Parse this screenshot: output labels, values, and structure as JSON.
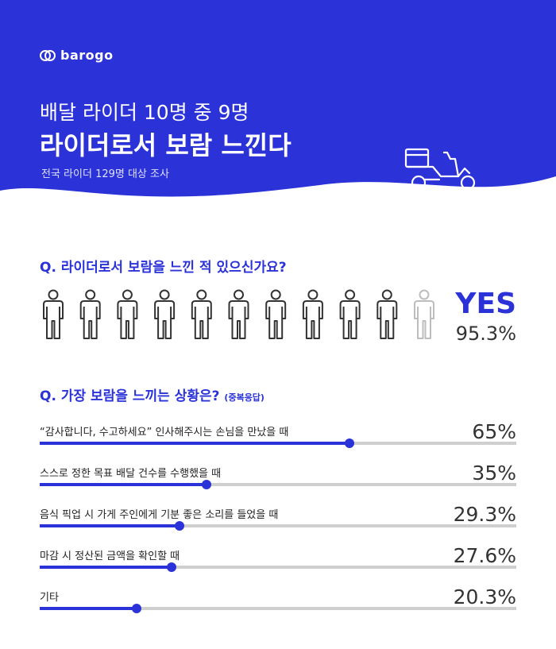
{
  "brand": {
    "name": "barogo"
  },
  "header": {
    "line1": "배달 라이더 10명 중 9명",
    "line2": "라이더로서 보람 느낀다",
    "sub": "전국 라이더 129명 대상 조사"
  },
  "colors": {
    "accent": "#2b32d8",
    "track": "#cfcfcf",
    "figure_dark": "#333333",
    "figure_light": "#bdbdbd"
  },
  "icons": [
    "barogo-logo-icon",
    "delivery-scooter-icon",
    "person-icon"
  ],
  "chart_data": [
    {
      "type": "pictograph",
      "title": "Q. 라이더로서 보람을 느낀 적 있으신가요?",
      "figures_total": 11,
      "figures_highlighted": 10,
      "answer": "YES",
      "value": 95.3,
      "value_label": "95.3%"
    },
    {
      "type": "bar",
      "title": "Q. 가장 보람을 느끼는 상황은?",
      "note": "(중복응답)",
      "xlim": [
        0,
        100
      ],
      "categories": [
        "“감사합니다, 수고하세요” 인사해주시는 손님을 만났을 때",
        "스스로 정한 목표 배달 건수를 수행했을 때",
        "음식 픽업 시 가게 주인에게 기분 좋은 소리를 들었을 때",
        "마감 시 정산된 금액을 확인할 때",
        "기타"
      ],
      "values": [
        65,
        35,
        29.3,
        27.6,
        20.3
      ],
      "value_labels": [
        "65%",
        "35%",
        "29.3%",
        "27.6%",
        "20.3%"
      ]
    }
  ]
}
